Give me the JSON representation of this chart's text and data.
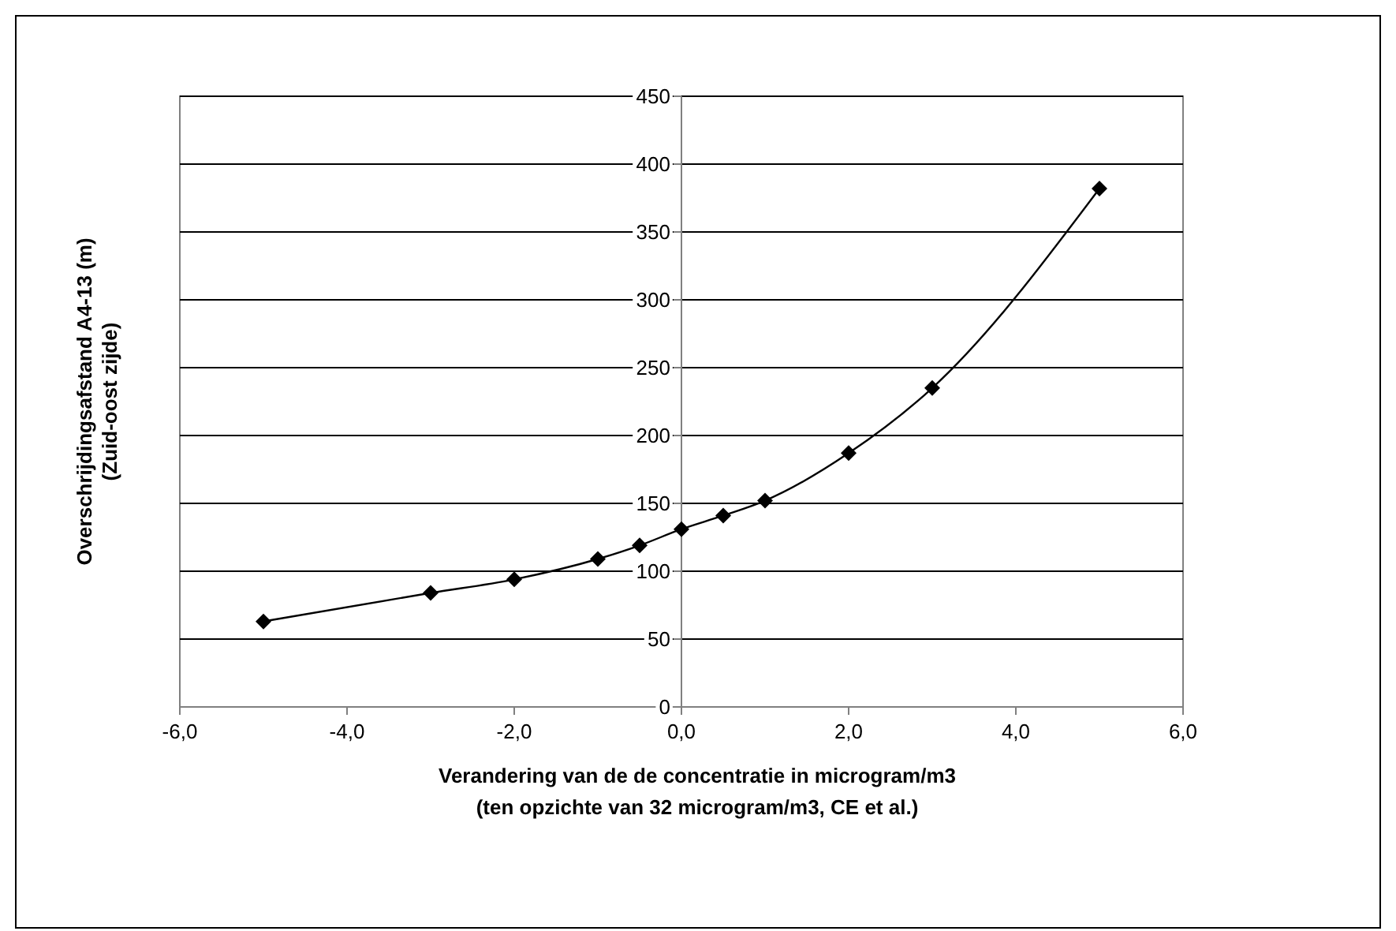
{
  "chart_data": {
    "type": "line",
    "xlabel": "Verandering van de de concentratie in microgram/m3\n(ten opzichte van 32 microgram/m3, CE et al.)",
    "ylabel": "Overschrijdingsafstand A4-13 (m)\n(Zuid-oost zijde)",
    "x": [
      -5,
      -3,
      -2,
      -1,
      -0.5,
      0,
      0.5,
      1,
      2,
      3,
      5
    ],
    "series": [
      {
        "color": "#000000",
        "values": [
          63,
          84,
          94,
          109,
          119,
          131,
          141,
          152,
          187,
          235,
          382
        ]
      }
    ],
    "xlim": [
      -6,
      6
    ],
    "xticks": [
      {
        "value": -6,
        "label": "-6,0"
      },
      {
        "value": -4,
        "label": "-4,0"
      },
      {
        "value": -2,
        "label": "-2,0"
      },
      {
        "value": 0,
        "label": "0,0"
      },
      {
        "value": 2,
        "label": "2,0"
      },
      {
        "value": 4,
        "label": "4,0"
      },
      {
        "value": 6,
        "label": "6,0"
      }
    ],
    "ylim": [
      0,
      450
    ],
    "yticks": [
      0,
      50,
      100,
      150,
      200,
      250,
      300,
      350,
      400,
      450
    ],
    "grid": "y",
    "marker": "diamond",
    "line_style": "solid"
  }
}
